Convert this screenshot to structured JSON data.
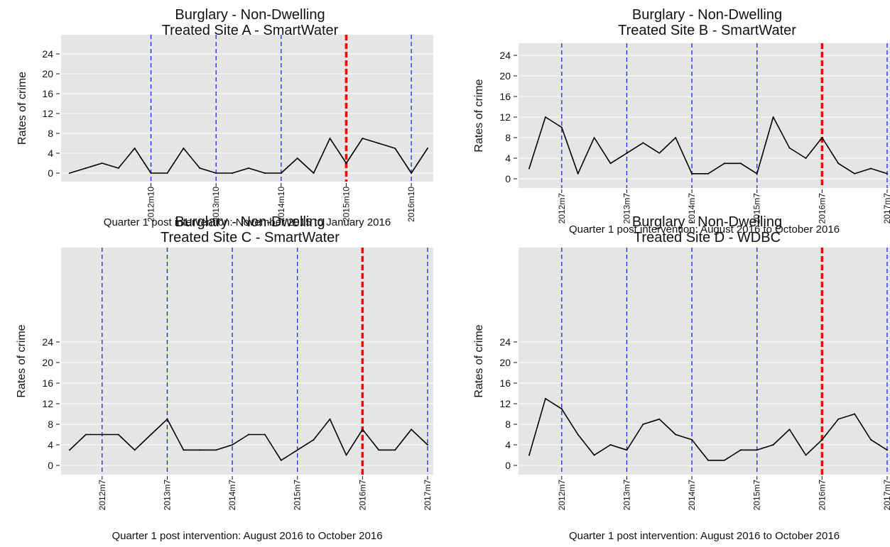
{
  "chart_data": [
    {
      "type": "line",
      "title": "Burglary - Non-Dwelling",
      "subtitle": "Treated Site A - SmartWater",
      "ylabel": "Rates of crime",
      "ylim": [
        -1,
        27
      ],
      "yticks": [
        0,
        4,
        8,
        12,
        16,
        20,
        24
      ],
      "x_tick_labels": [
        "2012m10",
        "2013m10",
        "2014m10",
        "2015m10",
        "2016m10"
      ],
      "values": [
        0,
        1,
        2,
        1,
        5,
        0,
        0,
        5,
        1,
        0,
        0,
        1,
        0,
        0,
        3,
        0,
        7,
        2,
        7,
        6,
        5,
        0,
        5
      ],
      "x_period_start": "2011m7",
      "x_period_step_months": 3,
      "ref_line_indices": [
        5,
        9,
        13,
        17,
        21
      ],
      "intervention_index": 17,
      "footnote": "Quarter 1 post intervention: November 2015 to January 2016",
      "grid": true,
      "colors": {
        "line": "#000000",
        "reference": "#2222ee",
        "intervention": "#ff0000",
        "plot_bg": "#e5e5e5"
      }
    },
    {
      "type": "line",
      "title": "Burglary - Non-Dwelling",
      "subtitle": "Treated Site B - SmartWater",
      "ylabel": "Rates of crime",
      "ylim": [
        -1,
        27
      ],
      "yticks": [
        0,
        4,
        8,
        12,
        16,
        20,
        24
      ],
      "x_tick_labels": [
        "2012m7",
        "2013m7",
        "2014m7",
        "2015m7",
        "2016m7",
        "2017m7"
      ],
      "values": [
        2,
        12,
        10,
        1,
        8,
        3,
        5,
        7,
        5,
        8,
        1,
        1,
        3,
        3,
        1,
        12,
        6,
        4,
        8,
        3,
        1,
        2,
        1
      ],
      "x_period_start": "2011m7",
      "x_period_step_months": 3,
      "ref_line_indices": [
        2,
        6,
        10,
        14,
        18,
        22
      ],
      "intervention_index": 18,
      "footnote": "Quarter 1 post intervention: August 2016 to October 2016",
      "grid": true,
      "colors": {
        "line": "#000000",
        "reference": "#2222ee",
        "intervention": "#ff0000",
        "plot_bg": "#e5e5e5"
      }
    },
    {
      "type": "line",
      "title": "Burglary - Non-Dwelling",
      "subtitle": "Treated Site C - SmartWater",
      "ylabel": "Rates of crime",
      "ylim": [
        -1,
        27
      ],
      "yticks": [
        0,
        4,
        8,
        12,
        16,
        20,
        24
      ],
      "x_tick_labels": [
        "2012m7",
        "2013m7",
        "2014m7",
        "2015m7",
        "2016m7",
        "2017m7"
      ],
      "values": [
        3,
        6,
        6,
        6,
        3,
        6,
        9,
        3,
        3,
        3,
        4,
        6,
        6,
        1,
        3,
        5,
        9,
        2,
        7,
        3,
        3,
        7,
        4
      ],
      "x_period_start": "2011m7",
      "x_period_step_months": 3,
      "ref_line_indices": [
        2,
        6,
        10,
        14,
        18,
        22
      ],
      "intervention_index": 18,
      "footnote": "Quarter 1 post intervention: August 2016 to October 2016",
      "grid": true,
      "colors": {
        "line": "#000000",
        "reference": "#2222ee",
        "intervention": "#ff0000",
        "plot_bg": "#e5e5e5"
      }
    },
    {
      "type": "line",
      "title": "Burglary - Non-Dwelling",
      "subtitle": "Treated Site D - WDBC",
      "ylabel": "Rates of crime",
      "ylim": [
        -1,
        27
      ],
      "yticks": [
        0,
        4,
        8,
        12,
        16,
        20,
        24
      ],
      "x_tick_labels": [
        "2012m7",
        "2013m7",
        "2014m7",
        "2015m7",
        "2016m7",
        "2017m7"
      ],
      "values": [
        2,
        13,
        11,
        6,
        2,
        4,
        3,
        8,
        9,
        6,
        5,
        1,
        1,
        3,
        3,
        4,
        7,
        2,
        5,
        9,
        10,
        5,
        3
      ],
      "x_period_start": "2011m7",
      "x_period_step_months": 3,
      "ref_line_indices": [
        2,
        6,
        10,
        14,
        18,
        22
      ],
      "intervention_index": 18,
      "footnote": "Quarter 1 post intervention: August 2016 to October 2016",
      "grid": true,
      "colors": {
        "line": "#000000",
        "reference": "#2222ee",
        "intervention": "#ff0000",
        "plot_bg": "#e5e5e5"
      }
    }
  ]
}
